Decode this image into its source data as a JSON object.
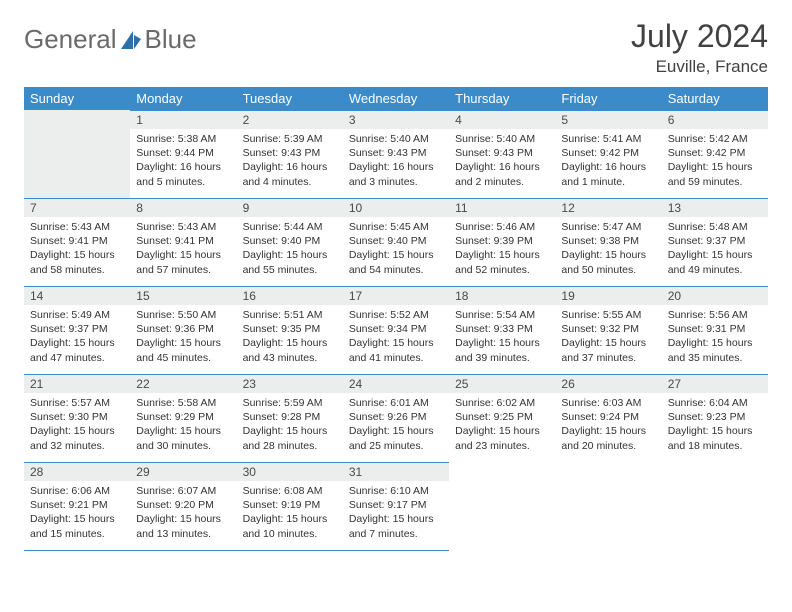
{
  "brand": {
    "part1": "General",
    "part2": "Blue"
  },
  "title": {
    "month": "July 2024",
    "location": "Euville, France"
  },
  "colors": {
    "accent": "#3b8bca",
    "headerbg": "#eceded"
  },
  "daynames": [
    "Sunday",
    "Monday",
    "Tuesday",
    "Wednesday",
    "Thursday",
    "Friday",
    "Saturday"
  ],
  "weeks": [
    [
      null,
      {
        "n": "1",
        "sr": "Sunrise: 5:38 AM",
        "ss": "Sunset: 9:44 PM",
        "dl1": "Daylight: 16 hours",
        "dl2": "and 5 minutes."
      },
      {
        "n": "2",
        "sr": "Sunrise: 5:39 AM",
        "ss": "Sunset: 9:43 PM",
        "dl1": "Daylight: 16 hours",
        "dl2": "and 4 minutes."
      },
      {
        "n": "3",
        "sr": "Sunrise: 5:40 AM",
        "ss": "Sunset: 9:43 PM",
        "dl1": "Daylight: 16 hours",
        "dl2": "and 3 minutes."
      },
      {
        "n": "4",
        "sr": "Sunrise: 5:40 AM",
        "ss": "Sunset: 9:43 PM",
        "dl1": "Daylight: 16 hours",
        "dl2": "and 2 minutes."
      },
      {
        "n": "5",
        "sr": "Sunrise: 5:41 AM",
        "ss": "Sunset: 9:42 PM",
        "dl1": "Daylight: 16 hours",
        "dl2": "and 1 minute."
      },
      {
        "n": "6",
        "sr": "Sunrise: 5:42 AM",
        "ss": "Sunset: 9:42 PM",
        "dl1": "Daylight: 15 hours",
        "dl2": "and 59 minutes."
      }
    ],
    [
      {
        "n": "7",
        "sr": "Sunrise: 5:43 AM",
        "ss": "Sunset: 9:41 PM",
        "dl1": "Daylight: 15 hours",
        "dl2": "and 58 minutes."
      },
      {
        "n": "8",
        "sr": "Sunrise: 5:43 AM",
        "ss": "Sunset: 9:41 PM",
        "dl1": "Daylight: 15 hours",
        "dl2": "and 57 minutes."
      },
      {
        "n": "9",
        "sr": "Sunrise: 5:44 AM",
        "ss": "Sunset: 9:40 PM",
        "dl1": "Daylight: 15 hours",
        "dl2": "and 55 minutes."
      },
      {
        "n": "10",
        "sr": "Sunrise: 5:45 AM",
        "ss": "Sunset: 9:40 PM",
        "dl1": "Daylight: 15 hours",
        "dl2": "and 54 minutes."
      },
      {
        "n": "11",
        "sr": "Sunrise: 5:46 AM",
        "ss": "Sunset: 9:39 PM",
        "dl1": "Daylight: 15 hours",
        "dl2": "and 52 minutes."
      },
      {
        "n": "12",
        "sr": "Sunrise: 5:47 AM",
        "ss": "Sunset: 9:38 PM",
        "dl1": "Daylight: 15 hours",
        "dl2": "and 50 minutes."
      },
      {
        "n": "13",
        "sr": "Sunrise: 5:48 AM",
        "ss": "Sunset: 9:37 PM",
        "dl1": "Daylight: 15 hours",
        "dl2": "and 49 minutes."
      }
    ],
    [
      {
        "n": "14",
        "sr": "Sunrise: 5:49 AM",
        "ss": "Sunset: 9:37 PM",
        "dl1": "Daylight: 15 hours",
        "dl2": "and 47 minutes."
      },
      {
        "n": "15",
        "sr": "Sunrise: 5:50 AM",
        "ss": "Sunset: 9:36 PM",
        "dl1": "Daylight: 15 hours",
        "dl2": "and 45 minutes."
      },
      {
        "n": "16",
        "sr": "Sunrise: 5:51 AM",
        "ss": "Sunset: 9:35 PM",
        "dl1": "Daylight: 15 hours",
        "dl2": "and 43 minutes."
      },
      {
        "n": "17",
        "sr": "Sunrise: 5:52 AM",
        "ss": "Sunset: 9:34 PM",
        "dl1": "Daylight: 15 hours",
        "dl2": "and 41 minutes."
      },
      {
        "n": "18",
        "sr": "Sunrise: 5:54 AM",
        "ss": "Sunset: 9:33 PM",
        "dl1": "Daylight: 15 hours",
        "dl2": "and 39 minutes."
      },
      {
        "n": "19",
        "sr": "Sunrise: 5:55 AM",
        "ss": "Sunset: 9:32 PM",
        "dl1": "Daylight: 15 hours",
        "dl2": "and 37 minutes."
      },
      {
        "n": "20",
        "sr": "Sunrise: 5:56 AM",
        "ss": "Sunset: 9:31 PM",
        "dl1": "Daylight: 15 hours",
        "dl2": "and 35 minutes."
      }
    ],
    [
      {
        "n": "21",
        "sr": "Sunrise: 5:57 AM",
        "ss": "Sunset: 9:30 PM",
        "dl1": "Daylight: 15 hours",
        "dl2": "and 32 minutes."
      },
      {
        "n": "22",
        "sr": "Sunrise: 5:58 AM",
        "ss": "Sunset: 9:29 PM",
        "dl1": "Daylight: 15 hours",
        "dl2": "and 30 minutes."
      },
      {
        "n": "23",
        "sr": "Sunrise: 5:59 AM",
        "ss": "Sunset: 9:28 PM",
        "dl1": "Daylight: 15 hours",
        "dl2": "and 28 minutes."
      },
      {
        "n": "24",
        "sr": "Sunrise: 6:01 AM",
        "ss": "Sunset: 9:26 PM",
        "dl1": "Daylight: 15 hours",
        "dl2": "and 25 minutes."
      },
      {
        "n": "25",
        "sr": "Sunrise: 6:02 AM",
        "ss": "Sunset: 9:25 PM",
        "dl1": "Daylight: 15 hours",
        "dl2": "and 23 minutes."
      },
      {
        "n": "26",
        "sr": "Sunrise: 6:03 AM",
        "ss": "Sunset: 9:24 PM",
        "dl1": "Daylight: 15 hours",
        "dl2": "and 20 minutes."
      },
      {
        "n": "27",
        "sr": "Sunrise: 6:04 AM",
        "ss": "Sunset: 9:23 PM",
        "dl1": "Daylight: 15 hours",
        "dl2": "and 18 minutes."
      }
    ],
    [
      {
        "n": "28",
        "sr": "Sunrise: 6:06 AM",
        "ss": "Sunset: 9:21 PM",
        "dl1": "Daylight: 15 hours",
        "dl2": "and 15 minutes."
      },
      {
        "n": "29",
        "sr": "Sunrise: 6:07 AM",
        "ss": "Sunset: 9:20 PM",
        "dl1": "Daylight: 15 hours",
        "dl2": "and 13 minutes."
      },
      {
        "n": "30",
        "sr": "Sunrise: 6:08 AM",
        "ss": "Sunset: 9:19 PM",
        "dl1": "Daylight: 15 hours",
        "dl2": "and 10 minutes."
      },
      {
        "n": "31",
        "sr": "Sunrise: 6:10 AM",
        "ss": "Sunset: 9:17 PM",
        "dl1": "Daylight: 15 hours",
        "dl2": "and 7 minutes."
      },
      null,
      null,
      null
    ]
  ]
}
